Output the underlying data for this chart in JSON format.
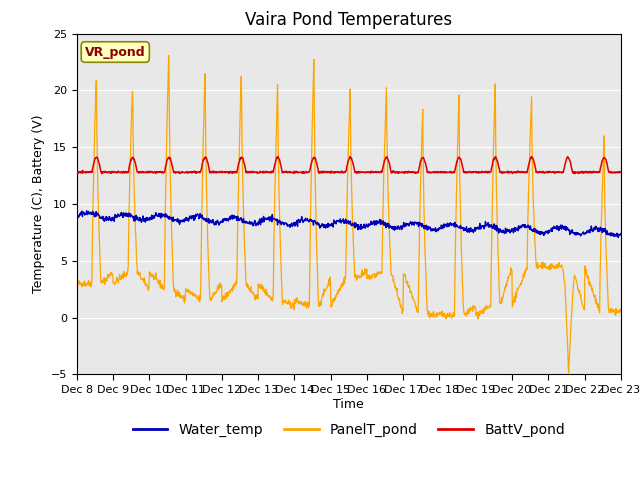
{
  "title": "Vaira Pond Temperatures",
  "xlabel": "Time",
  "ylabel": "Temperature (C), Battery (V)",
  "site_label": "VR_pond",
  "ylim": [
    -5,
    25
  ],
  "yticks": [
    -5,
    0,
    5,
    10,
    15,
    20,
    25
  ],
  "xtick_labels": [
    "Dec 8",
    "Dec 9",
    "Dec 10",
    "Dec 11",
    "Dec 12",
    "Dec 13",
    "Dec 14",
    "Dec 15",
    "Dec 16",
    "Dec 17",
    "Dec 18",
    "Dec 19",
    "Dec 20",
    "Dec 21",
    "Dec 22",
    "Dec 23"
  ],
  "bg_color": "#e8e8e8",
  "panel_color_line": "#FFA500",
  "water_color_line": "#0000BB",
  "batt_color_line": "#DD0000",
  "legend_entries": [
    "Water_temp",
    "PanelT_pond",
    "BattV_pond"
  ],
  "title_fontsize": 12,
  "label_fontsize": 9,
  "tick_fontsize": 8,
  "legend_fontsize": 10,
  "grid_color": "#ffffff",
  "site_label_facecolor": "#ffffc0",
  "site_label_edgecolor": "#888800",
  "site_label_textcolor": "#8B0000"
}
